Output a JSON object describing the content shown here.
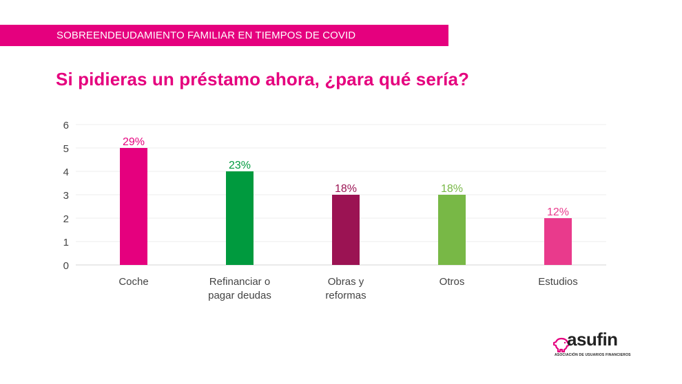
{
  "banner": {
    "text": "SOBREENDEUDAMIENTO FAMILIAR EN TIEMPOS DE COVID",
    "color": "#e5007e"
  },
  "question": {
    "text": "Si pidieras un préstamo ahora, ¿para qué sería?"
  },
  "chart_data": {
    "type": "bar",
    "title": "Si pidieras un préstamo ahora, ¿para qué sería?",
    "xlabel": "",
    "ylabel": "",
    "ylim": [
      0,
      6
    ],
    "yticks": [
      0,
      1,
      2,
      3,
      4,
      5,
      6
    ],
    "grid": true,
    "categories": [
      [
        "Coche"
      ],
      [
        "Refinanciar o",
        "pagar deudas"
      ],
      [
        "Obras y",
        "reformas"
      ],
      [
        "Otros"
      ],
      [
        "Estudios"
      ]
    ],
    "values": [
      5,
      4,
      3,
      3,
      2
    ],
    "data_labels": [
      "29%",
      "23%",
      "18%",
      "18%",
      "12%"
    ],
    "colors": [
      "#e5007e",
      "#009a3e",
      "#9b1353",
      "#78b846",
      "#e93a8c"
    ]
  },
  "logo": {
    "word": "asufin",
    "tagline": "ASOCIACIÓN DE USUARIOS FINANCIEROS",
    "icon": "piggy-bank-icon",
    "color": "#e5007e"
  }
}
